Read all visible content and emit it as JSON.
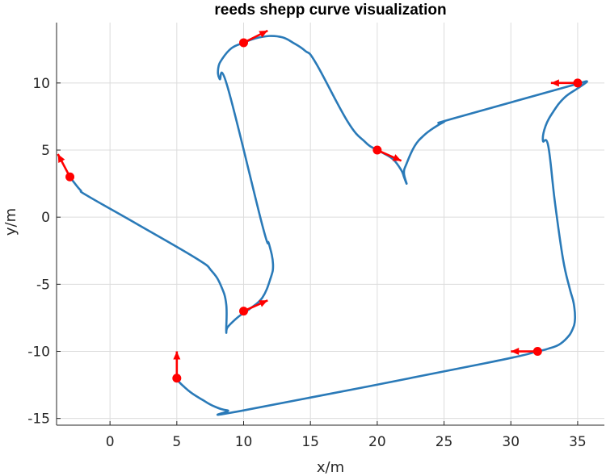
{
  "chart_data": {
    "type": "line",
    "title": "reeds shepp curve visualization",
    "xlabel": "x/m",
    "ylabel": "y/m",
    "xlim": [
      -4,
      37
    ],
    "ylim": [
      -15.5,
      14.5
    ],
    "xticks": [
      0,
      5,
      10,
      15,
      20,
      25,
      30,
      35
    ],
    "yticks": [
      -15,
      -10,
      -5,
      0,
      5,
      10
    ],
    "grid": true,
    "legend": "none",
    "colors": {
      "path": "#2a7ab8",
      "pose": "#ff0000"
    },
    "path": {
      "x": [
        -3,
        -2.7,
        -2.2,
        -1.7,
        2,
        6.5,
        7.6,
        8.3,
        8.7,
        8.7,
        8.8,
        9.4,
        9.9,
        10.2,
        10.5,
        11.4,
        12,
        12.2,
        11.9,
        11.4,
        8.8,
        8.2,
        8.1,
        8.4,
        9.1,
        10,
        10.8,
        11.9,
        12.9,
        13.7,
        14.6,
        15.4,
        17.8,
        19.1,
        19.8,
        20.4,
        21.2,
        21.8,
        22,
        22.2,
        22,
        22.2,
        22.8,
        23.5,
        24.3,
        25,
        25.5,
        34.5,
        35.2,
        35.7,
        35,
        34,
        33.2,
        32.6,
        32.4,
        32.8,
        33.3,
        33.9,
        34.4,
        34.7,
        34.8,
        34.6,
        34.2,
        33.6,
        32.8,
        32,
        28,
        10,
        8.8,
        7.8,
        6.9,
        6.1,
        5.5,
        5.1,
        5,
        5,
        5
      ],
      "y": [
        3,
        2.6,
        2,
        1.6,
        -0.5,
        -3.1,
        -4,
        -5.1,
        -6.5,
        -8.5,
        -8.2,
        -7.6,
        -7.2,
        -7,
        -6.8,
        -6,
        -4.6,
        -3.5,
        -2,
        -0.6,
        9.7,
        10.3,
        11.1,
        11.8,
        12.6,
        13,
        13.3,
        13.5,
        13.4,
        13,
        12.4,
        11.5,
        7.1,
        5.6,
        5.1,
        4.8,
        4.3,
        3.5,
        3,
        2.5,
        3.3,
        4,
        5.3,
        6.1,
        6.7,
        7.1,
        7.3,
        9.8,
        10,
        10.1,
        9.6,
        8.9,
        7.9,
        6.8,
        5.7,
        5.3,
        1.1,
        -3.1,
        -5.3,
        -6.4,
        -7.6,
        -8.4,
        -9,
        -9.5,
        -9.8,
        -10,
        -10.9,
        -14.4,
        -14.4,
        -14.1,
        -13.6,
        -13.1,
        -12.6,
        -12.2,
        -12,
        -12,
        -12
      ]
    },
    "poses": [
      {
        "x": -3,
        "y": 3,
        "dx": -0.9,
        "dy": 1.7
      },
      {
        "x": 10,
        "y": -7,
        "dx": 1.8,
        "dy": 0.8
      },
      {
        "x": 10,
        "y": 13,
        "dx": 1.8,
        "dy": 0.9
      },
      {
        "x": 20,
        "y": 5,
        "dx": 1.8,
        "dy": -0.8
      },
      {
        "x": 35,
        "y": 10,
        "dx": -2,
        "dy": 0
      },
      {
        "x": 32,
        "y": -10,
        "dx": -2,
        "dy": 0
      },
      {
        "x": 5,
        "y": -12,
        "dx": 0,
        "dy": 2
      }
    ]
  }
}
